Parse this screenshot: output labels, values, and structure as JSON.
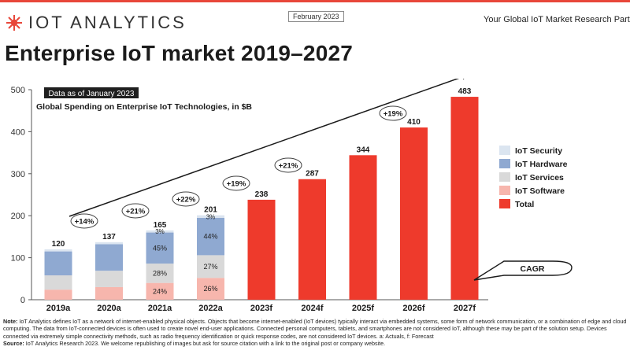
{
  "header": {
    "logo_text": "IOT ANALYTICS",
    "date_badge": "February 2023",
    "tagline": "Your Global IoT Market Research Partner"
  },
  "title": "Enterprise IoT market 2019–2027",
  "colors": {
    "security": "#dbe5f0",
    "hardware": "#8fa9d1",
    "services": "#d9d9d9",
    "software": "#f7b6ad",
    "total": "#ee3a2c",
    "accent": "#e8473a"
  },
  "chart_data": {
    "type": "bar",
    "data_note": "Data as of January 2023",
    "subtitle": "Global Spending on Enterprise IoT Technologies, in $B",
    "categories": [
      "2019a",
      "2020a",
      "2021a",
      "2022a",
      "2023f",
      "2024f",
      "2025f",
      "2026f",
      "2027f"
    ],
    "ylim": [
      0,
      500
    ],
    "yticks": [
      0,
      100,
      200,
      300,
      400,
      500
    ],
    "totals": [
      120,
      137,
      165,
      201,
      238,
      287,
      344,
      410,
      483
    ],
    "series": [
      {
        "name": "IoT Software",
        "key": "software",
        "values": [
          24,
          30,
          40,
          52,
          null,
          null,
          null,
          null,
          null
        ],
        "labels": [
          "",
          "",
          "24%",
          "26%",
          "",
          "",
          "",
          "",
          ""
        ]
      },
      {
        "name": "IoT Services",
        "key": "services",
        "values": [
          34,
          39,
          46,
          54,
          null,
          null,
          null,
          null,
          null
        ],
        "labels": [
          "",
          "",
          "28%",
          "27%",
          "",
          "",
          "",
          "",
          ""
        ]
      },
      {
        "name": "IoT Hardware",
        "key": "hardware",
        "values": [
          57,
          63,
          74,
          89,
          null,
          null,
          null,
          null,
          null
        ],
        "labels": [
          "",
          "",
          "45%",
          "44%",
          "",
          "",
          "",
          "",
          ""
        ]
      },
      {
        "name": "IoT Security",
        "key": "security",
        "values": [
          5,
          5,
          5,
          6,
          null,
          null,
          null,
          null,
          null
        ],
        "labels": [
          "",
          "",
          "3%",
          "3%",
          "",
          "",
          "",
          "",
          ""
        ]
      },
      {
        "name": "Total",
        "key": "total",
        "values": [
          null,
          null,
          null,
          null,
          238,
          287,
          344,
          410,
          483
        ],
        "labels": [
          "",
          "",
          "",
          "",
          "",
          "",
          "",
          "",
          ""
        ]
      }
    ],
    "legend": [
      "IoT Security",
      "IoT Hardware",
      "IoT Services",
      "IoT Software",
      "Total"
    ],
    "growth_labels": [
      "+14%",
      "+21%",
      "+22%",
      "+19%",
      "+21%",
      "+19%"
    ],
    "cagr_label": "CAGR",
    "legend_position": "right",
    "grid": false
  },
  "note": {
    "note_label": "Note:",
    "note_text": "IoT Analytics defines IoT as a network of internet-enabled physical objects. Objects that become internet-enabled (IoT devices) typically interact via embedded systems, some form of network communication, or a combination of edge and cloud computing. The data from IoT-connected devices is often used to create novel end-user applications. Connected personal computers, tablets, and smartphones are not considered IoT, although these may be part of the solution setup. Devices connected via extremely simple connectivity methods, such as radio frequency identification or quick response codes, are not considered IoT devices. a: Actuals, f: Forecast",
    "source_label": "Source:",
    "source_text": "IoT Analytics Research 2023. We welcome republishing of images but ask for source citation with a link to the original post or company website."
  }
}
